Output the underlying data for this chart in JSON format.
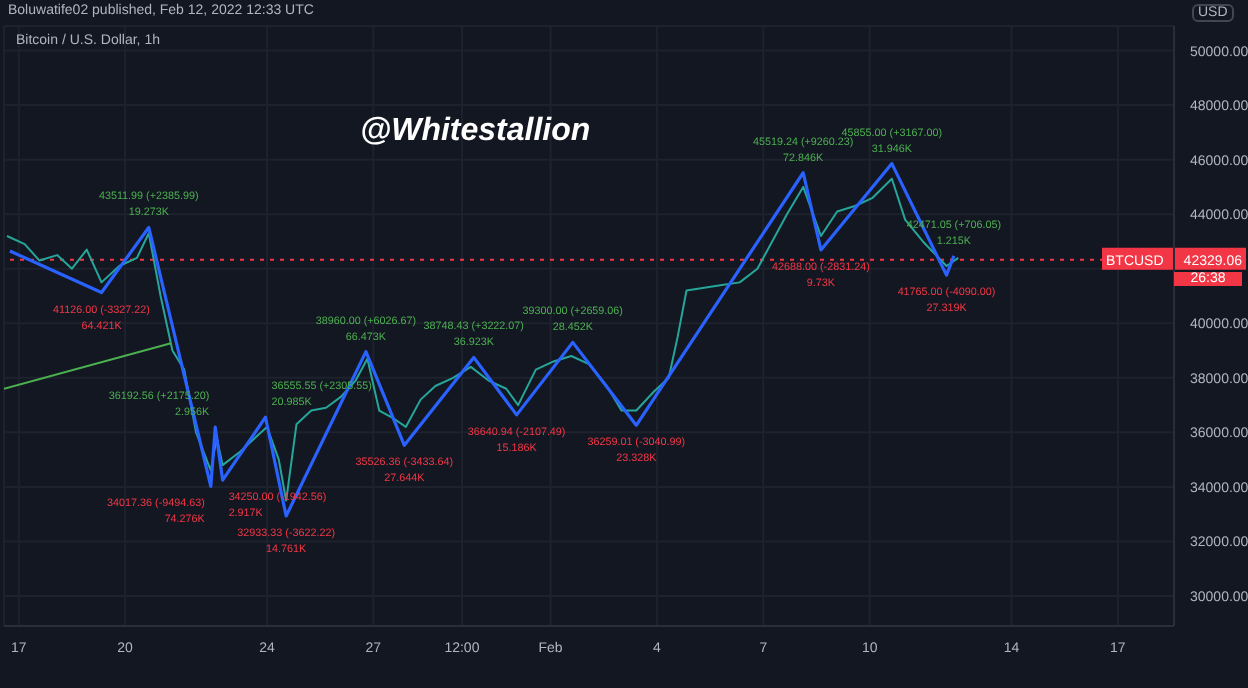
{
  "chart_data": {
    "type": "line",
    "title": "Bitcoin / U.S. Dollar, 1h",
    "subtitle": "Boluwatife02 published, Feb 12, 2022 12:33 UTC",
    "ylabel": "USD",
    "series": [
      {
        "color": "#26a69a",
        "x": [
          "2022-01-16T16:00",
          "2022-01-17T04:00",
          "2022-01-17T14:00",
          "2022-01-18T02:00",
          "2022-01-18T12:00",
          "2022-01-18T22:00",
          "2022-01-19T08:00",
          "2022-01-19T20:00",
          "2022-01-20T08:00",
          "2022-01-20T16:00",
          "2022-01-21T00:00",
          "2022-01-21T08:00",
          "2022-01-21T16:00",
          "2022-01-22T00:00",
          "2022-01-22T10:00",
          "2022-01-22T14:00",
          "2022-01-22T18:00",
          "2022-01-23T06:00",
          "2022-01-23T16:00",
          "2022-01-24T00:00",
          "2022-01-24T08:00",
          "2022-01-24T13:00",
          "2022-01-24T20:00",
          "2022-01-25T06:00",
          "2022-01-25T16:00",
          "2022-01-26T02:00",
          "2022-01-26T12:00",
          "2022-01-26T20:00",
          "2022-01-27T04:00",
          "2022-01-27T14:00",
          "2022-01-27T22:00",
          "2022-01-28T08:00",
          "2022-01-28T18:00",
          "2022-01-29T06:00",
          "2022-01-29T18:00",
          "2022-01-30T06:00",
          "2022-01-30T18:00",
          "2022-01-31T02:00",
          "2022-01-31T14:00",
          "2022-02-01T02:00",
          "2022-02-01T14:00",
          "2022-02-02T02:00",
          "2022-02-02T14:00",
          "2022-02-03T00:00",
          "2022-02-03T10:00",
          "2022-02-03T22:00",
          "2022-02-04T08:00",
          "2022-02-04T14:00",
          "2022-02-04T20:00",
          "2022-02-05T08:00",
          "2022-02-05T20:00",
          "2022-02-06T08:00",
          "2022-02-06T20:00",
          "2022-02-07T06:00",
          "2022-02-07T16:00",
          "2022-02-08T03:00",
          "2022-02-08T15:00",
          "2022-02-09T02:00",
          "2022-02-09T14:00",
          "2022-02-10T02:00",
          "2022-02-10T15:00",
          "2022-02-11T00:00",
          "2022-02-11T12:00",
          "2022-02-12T04:00",
          "2022-02-12T12:00"
        ],
        "values": [
          43200,
          42900,
          42300,
          42500,
          42000,
          42700,
          41500,
          42100,
          42400,
          43300,
          41000,
          39000,
          38300,
          36000,
          34600,
          35800,
          34800,
          35300,
          35800,
          36200,
          35000,
          33500,
          36300,
          36800,
          36900,
          37300,
          37900,
          38700,
          36800,
          36500,
          36200,
          37200,
          37700,
          38000,
          38400,
          37900,
          37600,
          37000,
          38300,
          38600,
          38800,
          38500,
          37700,
          36800,
          36800,
          37500,
          38000,
          39500,
          41200,
          41300,
          41400,
          41500,
          42000,
          43000,
          44000,
          45000,
          43200,
          44100,
          44300,
          44600,
          45300,
          43800,
          43000,
          42100,
          42400
        ]
      },
      {
        "color": "#4caf50",
        "x": [
          "2022-01-16T14:00",
          "2022-01-21T07:00"
        ],
        "values": [
          37600,
          39270
        ]
      },
      {
        "color": "#2962ff",
        "x": [
          "2022-01-16T18:00",
          "2022-01-19T08:00",
          "2022-01-20T16:00",
          "2022-01-22T10:00",
          "2022-01-22T13:00",
          "2022-01-22T18:00",
          "2022-01-23T23:00",
          "2022-01-24T13:00",
          "2022-01-26T19:00",
          "2022-01-27T21:00",
          "2022-01-29T20:00",
          "2022-01-31T01:00",
          "2022-02-01T15:00",
          "2022-02-03T10:00",
          "2022-02-08T03:00",
          "2022-02-08T15:00",
          "2022-02-10T15:00",
          "2022-02-12T04:00",
          "2022-02-12T09:00"
        ],
        "values": [
          42650,
          41126,
          43511.99,
          34017.36,
          36192.56,
          34250,
          36555.55,
          32933.33,
          38960,
          35526.36,
          38748.43,
          36640.94,
          39300,
          36259.01,
          45519.24,
          42688,
          45855,
          41765,
          42471.05
        ]
      }
    ],
    "annotations": [
      "@Whitestallion",
      "42329.06",
      "26:38",
      {
        "text": "41126.00 (-3327.22)\n64.421K",
        "x": "2022-01-19T08:00",
        "y": 41126
      },
      {
        "text": "43511.99 (+2385.99)\n19.273K",
        "x": "2022-01-20T16:00",
        "y": 43511.99
      },
      {
        "text": "34017.36 (-9494.63)\n74.276K",
        "x": "2022-01-22T10:00",
        "y": 34017.36
      },
      {
        "text": "36192.56 (+2175.20)\n2.956K",
        "x": "2022-01-22T13:00",
        "y": 36192.56
      },
      {
        "text": "34250.00 (-1942.56)\n2.917K",
        "x": "2022-01-22T18:00",
        "y": 34250
      },
      {
        "text": "36555.55 (+2305.55)\n20.985K",
        "x": "2022-01-23T23:00",
        "y": 36555.55
      },
      {
        "text": "32933.33 (-3622.22)\n14.761K",
        "x": "2022-01-24T13:00",
        "y": 32933.33
      },
      {
        "text": "38960.00 (+6026.67)\n66.473K",
        "x": "2022-01-26T19:00",
        "y": 38960
      },
      {
        "text": "35526.36 (-3433.64)\n27.644K",
        "x": "2022-01-27T21:00",
        "y": 35526.36
      },
      {
        "text": "38748.43 (+3222.07)\n36.923K",
        "x": "2022-01-29T20:00",
        "y": 38748.43
      },
      {
        "text": "36640.94 (-2107.49)\n15.186K",
        "x": "2022-01-31T01:00",
        "y": 36640.94
      },
      {
        "text": "39300.00 (+2659.06)\n28.452K",
        "x": "2022-02-01T15:00",
        "y": 39300
      },
      {
        "text": "36259.01 (-3040.99)\n23.328K",
        "x": "2022-02-03T10:00",
        "y": 36259.01
      },
      {
        "text": "45519.24 (+9260.23)\n72.846K",
        "x": "2022-02-08T03:00",
        "y": 45519.24
      },
      {
        "text": "42688.00 (-2831.24)\n9.73K",
        "x": "2022-02-08T15:00",
        "y": 42688
      },
      {
        "text": "45855.00 (+3167.00)\n31.946K",
        "x": "2022-02-10T15:00",
        "y": 45855
      },
      {
        "text": "41765.00 (-4090.00)\n27.319K",
        "x": "2022-02-12T04:00",
        "y": 41765
      },
      {
        "text": "42471.05 (+706.05)\n1.215K",
        "x": "2022-02-12T09:00",
        "y": 42471.05
      }
    ],
    "ref_lines": [
      {
        "axis": "y",
        "value": 42329.06,
        "label": "BTCUSD",
        "color": "#f23645",
        "line_style": "dotted"
      }
    ],
    "xlim": [
      "2022-01-16T14:00",
      "2022-02-18T14:00"
    ],
    "xticks": [
      {
        "value": "2022-01-17",
        "label": "17"
      },
      {
        "value": "2022-01-20",
        "label": "20"
      },
      {
        "value": "2022-01-24",
        "label": "24"
      },
      {
        "value": "2022-01-27",
        "label": "27"
      },
      {
        "value": "2022-01-29T12:00",
        "label": "12:00"
      },
      {
        "value": "2022-02-01",
        "label": "Feb"
      },
      {
        "value": "2022-02-04",
        "label": "4"
      },
      {
        "value": "2022-02-07",
        "label": "7"
      },
      {
        "value": "2022-02-10",
        "label": "10"
      },
      {
        "value": "2022-02-14",
        "label": "14"
      },
      {
        "value": "2022-02-17",
        "label": "17"
      }
    ],
    "ylim": [
      28900,
      50900
    ],
    "yticks": [
      {
        "value": 30000,
        "label": "30000.00"
      },
      {
        "value": 32000,
        "label": "32000.00"
      },
      {
        "value": 34000,
        "label": "34000.00"
      },
      {
        "value": 36000,
        "label": "36000.00"
      },
      {
        "value": 38000,
        "label": "38000.00"
      },
      {
        "value": 40000,
        "label": "40000.00"
      },
      {
        "value": 42000,
        "label": null
      },
      {
        "value": 44000,
        "label": "44000.00"
      },
      {
        "value": 46000,
        "label": "46000.00"
      },
      {
        "value": 48000,
        "label": "48000.00"
      },
      {
        "value": 50000,
        "label": "50000.00"
      }
    ],
    "grid": true,
    "marker": "none",
    "line_style": "solid"
  }
}
